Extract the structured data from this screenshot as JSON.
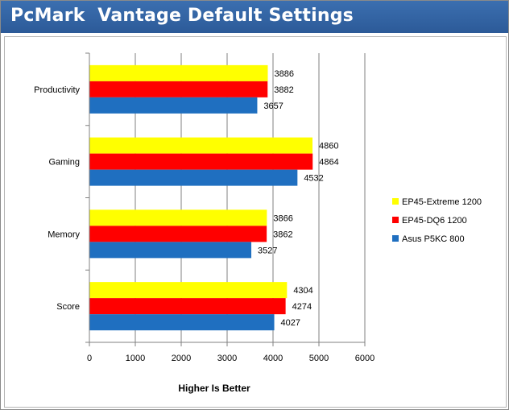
{
  "title": "PcMark  Vantage Default Settings",
  "chart_data": {
    "type": "bar",
    "orientation": "horizontal",
    "categories": [
      "Productivity",
      "Gaming",
      "Memory",
      "Score"
    ],
    "series": [
      {
        "name": "EP45-Extreme 1200",
        "color": "#ffff00",
        "values": [
          3886,
          4860,
          3866,
          4304
        ]
      },
      {
        "name": "EP45-DQ6 1200",
        "color": "#ff0000",
        "values": [
          3882,
          4864,
          3862,
          4274
        ]
      },
      {
        "name": "Asus P5KC 800",
        "color": "#1f6fc0",
        "values": [
          3657,
          4532,
          3527,
          4027
        ]
      }
    ],
    "xlim": [
      0,
      6000
    ],
    "xticks": [
      0,
      1000,
      2000,
      3000,
      4000,
      5000,
      6000
    ],
    "xlabel": "Higher Is Better",
    "ylabel": "",
    "grid": "vertical",
    "legend_position": "right"
  }
}
